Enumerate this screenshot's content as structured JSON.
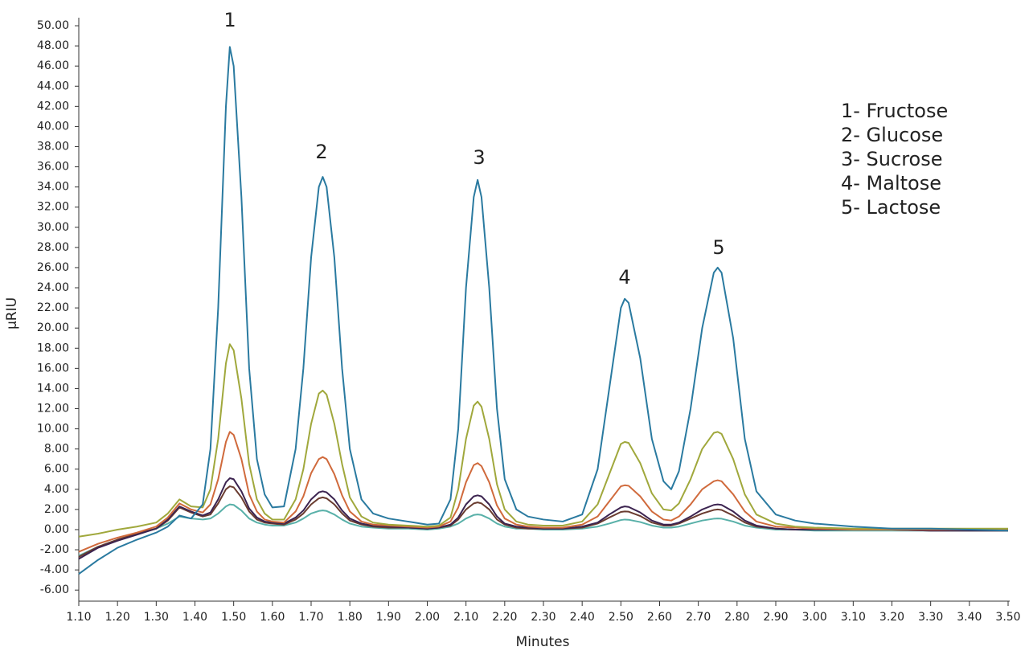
{
  "chart_data": {
    "type": "line",
    "x_label": "Minutes",
    "y_label": "μRIU",
    "xlim": [
      1.1,
      3.5
    ],
    "ylim": [
      -7.1,
      50.8
    ],
    "xticks": [
      {
        "value": 1.1,
        "label": "1.10"
      },
      {
        "value": 1.2,
        "label": "1.20"
      },
      {
        "value": 1.3,
        "label": "1.30"
      },
      {
        "value": 1.4,
        "label": "1.40"
      },
      {
        "value": 1.5,
        "label": "1.50"
      },
      {
        "value": 1.6,
        "label": "1.60"
      },
      {
        "value": 1.7,
        "label": "1.70"
      },
      {
        "value": 1.8,
        "label": "1.80"
      },
      {
        "value": 1.9,
        "label": "1.90"
      },
      {
        "value": 2.0,
        "label": "2.00"
      },
      {
        "value": 2.1,
        "label": "2.10"
      },
      {
        "value": 2.2,
        "label": "2.20"
      },
      {
        "value": 2.3,
        "label": "2.30"
      },
      {
        "value": 2.4,
        "label": "2.40"
      },
      {
        "value": 2.5,
        "label": "2.50"
      },
      {
        "value": 2.6,
        "label": "2.60"
      },
      {
        "value": 2.7,
        "label": "2.70"
      },
      {
        "value": 2.8,
        "label": "2.80"
      },
      {
        "value": 2.9,
        "label": "2.90"
      },
      {
        "value": 3.0,
        "label": "3.00"
      },
      {
        "value": 3.1,
        "label": "3.10"
      },
      {
        "value": 3.2,
        "label": "3.20"
      },
      {
        "value": 3.3,
        "label": "3.30"
      },
      {
        "value": 3.4,
        "label": "3.40"
      },
      {
        "value": 3.5,
        "label": "3.50"
      }
    ],
    "yticks": [
      {
        "value": -6,
        "label": "-6.00"
      },
      {
        "value": -4,
        "label": "-4.00"
      },
      {
        "value": -2,
        "label": "-2.00"
      },
      {
        "value": 0,
        "label": "0.00"
      },
      {
        "value": 2,
        "label": "2.00"
      },
      {
        "value": 4,
        "label": "4.00"
      },
      {
        "value": 6,
        "label": "6.00"
      },
      {
        "value": 8,
        "label": "8.00"
      },
      {
        "value": 10,
        "label": "10.00"
      },
      {
        "value": 12,
        "label": "12.00"
      },
      {
        "value": 14,
        "label": "14.00"
      },
      {
        "value": 16,
        "label": "16.00"
      },
      {
        "value": 18,
        "label": "18.00"
      },
      {
        "value": 20,
        "label": "20.00"
      },
      {
        "value": 22,
        "label": "22.00"
      },
      {
        "value": 24,
        "label": "24.00"
      },
      {
        "value": 26,
        "label": "26.00"
      },
      {
        "value": 28,
        "label": "28.00"
      },
      {
        "value": 30,
        "label": "30.00"
      },
      {
        "value": 32,
        "label": "32.00"
      },
      {
        "value": 34,
        "label": "34.00"
      },
      {
        "value": 36,
        "label": "36.00"
      },
      {
        "value": 38,
        "label": "38.00"
      },
      {
        "value": 40,
        "label": "40.00"
      },
      {
        "value": 42,
        "label": "42.00"
      },
      {
        "value": 44,
        "label": "44.00"
      },
      {
        "value": 46,
        "label": "46.00"
      },
      {
        "value": 48,
        "label": "48.00"
      },
      {
        "value": 50,
        "label": "50.00"
      }
    ],
    "grid": false,
    "peak_labels": [
      "1",
      "2",
      "3",
      "4",
      "5"
    ],
    "compound_legend": [
      "1- Fructose",
      "2- Glucose",
      "3- Sucrose",
      "4- Maltose",
      "5- Lactose"
    ],
    "x": [
      1.1,
      1.15,
      1.2,
      1.25,
      1.3,
      1.33,
      1.36,
      1.39,
      1.42,
      1.44,
      1.46,
      1.48,
      1.49,
      1.5,
      1.52,
      1.54,
      1.56,
      1.58,
      1.6,
      1.63,
      1.66,
      1.68,
      1.7,
      1.72,
      1.73,
      1.74,
      1.76,
      1.78,
      1.8,
      1.83,
      1.86,
      1.9,
      1.95,
      2.0,
      2.03,
      2.06,
      2.08,
      2.1,
      2.12,
      2.13,
      2.14,
      2.16,
      2.18,
      2.2,
      2.23,
      2.26,
      2.3,
      2.35,
      2.4,
      2.44,
      2.47,
      2.5,
      2.51,
      2.52,
      2.55,
      2.58,
      2.61,
      2.63,
      2.65,
      2.68,
      2.71,
      2.74,
      2.75,
      2.76,
      2.79,
      2.82,
      2.85,
      2.9,
      2.95,
      3.0,
      3.1,
      3.2,
      3.3,
      3.4,
      3.5
    ],
    "series": [
      {
        "color": "#58b0a8",
        "values": [
          -2.6,
          -1.7,
          -1.0,
          -0.4,
          0.1,
          0.6,
          1.3,
          1.1,
          1.0,
          1.1,
          1.6,
          2.3,
          2.5,
          2.45,
          1.9,
          1.1,
          0.7,
          0.5,
          0.4,
          0.4,
          0.7,
          1.1,
          1.6,
          1.85,
          1.9,
          1.85,
          1.5,
          1.0,
          0.6,
          0.3,
          0.2,
          0.1,
          0.1,
          0,
          0.1,
          0.3,
          0.6,
          1.1,
          1.45,
          1.5,
          1.45,
          1.1,
          0.6,
          0.3,
          0.1,
          0.1,
          0,
          0,
          0.1,
          0.3,
          0.6,
          0.95,
          1.0,
          0.98,
          0.75,
          0.4,
          0.2,
          0.2,
          0.3,
          0.6,
          0.9,
          1.08,
          1.1,
          1.08,
          0.8,
          0.4,
          0.2,
          0,
          0,
          -0.1,
          -0.1,
          -0.1,
          -0.1,
          -0.1,
          -0.1
        ]
      },
      {
        "color": "#6a3c30",
        "values": [
          -2.7,
          -1.7,
          -1.0,
          -0.4,
          0.1,
          0.9,
          2.2,
          1.7,
          1.3,
          1.5,
          2.6,
          4.0,
          4.3,
          4.2,
          3.2,
          1.8,
          1.0,
          0.7,
          0.6,
          0.5,
          1.0,
          1.6,
          2.5,
          3.1,
          3.2,
          3.1,
          2.5,
          1.6,
          0.9,
          0.5,
          0.3,
          0.2,
          0.2,
          0.1,
          0.2,
          0.4,
          1.0,
          2.0,
          2.6,
          2.7,
          2.6,
          2.0,
          1.0,
          0.5,
          0.2,
          0.1,
          0.1,
          0.1,
          0.2,
          0.6,
          1.2,
          1.75,
          1.8,
          1.78,
          1.35,
          0.7,
          0.4,
          0.4,
          0.6,
          1.1,
          1.6,
          1.95,
          2.0,
          1.95,
          1.4,
          0.7,
          0.3,
          0.1,
          0,
          0,
          0,
          0,
          -0.1,
          -0.1,
          -0.1
        ]
      },
      {
        "color": "#3c2450",
        "values": [
          -2.9,
          -1.8,
          -1.1,
          -0.5,
          0.1,
          1.0,
          2.3,
          1.8,
          1.4,
          1.7,
          3,
          4.7,
          5.1,
          5.0,
          3.8,
          2.1,
          1.2,
          0.8,
          0.7,
          0.6,
          1.2,
          1.9,
          3.0,
          3.7,
          3.8,
          3.7,
          3.0,
          1.9,
          1.1,
          0.6,
          0.4,
          0.3,
          0.2,
          0.1,
          0.2,
          0.5,
          1.2,
          2.5,
          3.3,
          3.4,
          3.3,
          2.5,
          1.3,
          0.6,
          0.3,
          0.2,
          0.1,
          0.1,
          0.3,
          0.7,
          1.5,
          2.2,
          2.3,
          2.25,
          1.7,
          0.9,
          0.5,
          0.5,
          0.7,
          1.3,
          2.0,
          2.45,
          2.5,
          2.45,
          1.8,
          0.9,
          0.4,
          0.1,
          0,
          0,
          0,
          0,
          -0.1,
          -0.1,
          -0.1
        ]
      },
      {
        "color": "#d06a3c",
        "values": [
          -2.2,
          -1.4,
          -0.8,
          -0.3,
          0.3,
          1.2,
          2.6,
          2.0,
          1.7,
          2.5,
          5,
          8.7,
          9.7,
          9.4,
          7,
          3.5,
          1.8,
          1.0,
          0.8,
          0.7,
          1.8,
          3.3,
          5.6,
          7.0,
          7.2,
          7.0,
          5.5,
          3.4,
          1.8,
          0.8,
          0.5,
          0.4,
          0.3,
          0.2,
          0.3,
          0.8,
          2.2,
          4.7,
          6.4,
          6.6,
          6.3,
          4.7,
          2.4,
          1.1,
          0.5,
          0.3,
          0.2,
          0.2,
          0.5,
          1.3,
          2.8,
          4.3,
          4.4,
          4.35,
          3.3,
          1.8,
          1.0,
          0.9,
          1.3,
          2.5,
          4.0,
          4.8,
          4.9,
          4.8,
          3.5,
          1.8,
          0.8,
          0.3,
          0.2,
          0.1,
          0,
          0,
          0,
          0,
          0
        ]
      },
      {
        "color": "#a0a83c",
        "values": [
          -0.7,
          -0.4,
          0,
          0.3,
          0.7,
          1.6,
          3.0,
          2.3,
          2.2,
          4,
          9,
          16.5,
          18.4,
          17.8,
          13,
          6.5,
          3,
          1.6,
          1.0,
          1.0,
          3,
          6,
          10.5,
          13.5,
          13.8,
          13.4,
          10.5,
          6.5,
          3.2,
          1.3,
          0.7,
          0.5,
          0.4,
          0.3,
          0.4,
          1.2,
          4,
          9,
          12.3,
          12.7,
          12.2,
          9,
          4.5,
          2,
          0.8,
          0.5,
          0.4,
          0.4,
          0.8,
          2.5,
          5.5,
          8.5,
          8.7,
          8.6,
          6.6,
          3.6,
          2.0,
          1.9,
          2.6,
          5,
          8,
          9.6,
          9.7,
          9.5,
          7,
          3.5,
          1.5,
          0.6,
          0.3,
          0.2,
          0.1,
          0.1,
          0.1,
          0.1,
          0.1
        ]
      },
      {
        "color": "#2a7aa0",
        "values": [
          -4.4,
          -3.0,
          -1.8,
          -1.0,
          -0.3,
          0.3,
          1.4,
          1.1,
          2.5,
          8,
          22,
          42,
          47.9,
          46,
          33,
          16,
          7,
          3.5,
          2.2,
          2.3,
          8,
          16,
          27,
          34,
          35,
          34,
          27,
          16,
          8,
          3,
          1.6,
          1.1,
          0.8,
          0.5,
          0.6,
          3,
          10,
          24,
          33,
          34.7,
          33,
          24,
          12,
          5,
          2,
          1.3,
          1.0,
          0.8,
          1.5,
          6,
          14,
          22,
          22.9,
          22.5,
          17,
          9,
          4.8,
          4.0,
          5.8,
          12,
          20,
          25.5,
          26,
          25.5,
          19,
          9,
          3.8,
          1.5,
          0.9,
          0.6,
          0.3,
          0.1,
          0.1,
          0.0,
          -0.1
        ]
      }
    ]
  }
}
